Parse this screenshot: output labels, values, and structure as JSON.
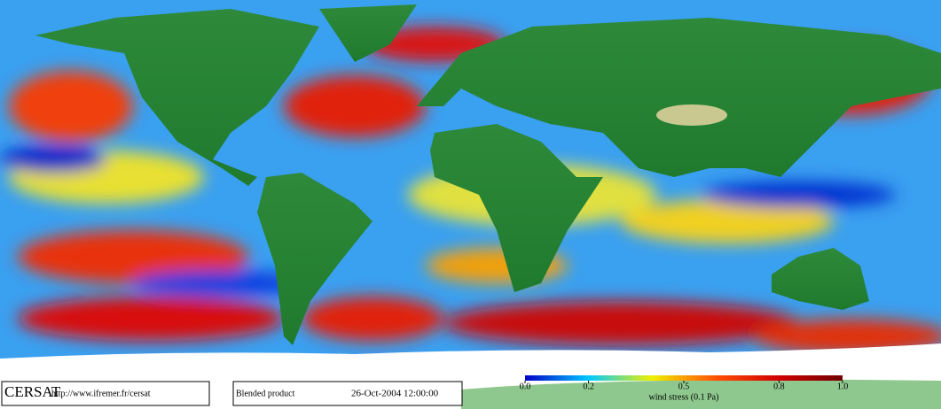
{
  "logo": "CERSAT",
  "url": "http://www.ifremer.fr/cersat",
  "product": "Blended product",
  "date": "26-Oct-2004 12:00:00",
  "colorbar": {
    "label": "wind stress (0.1 Pa)",
    "lim": [
      0,
      1
    ],
    "ticks": [
      {
        "value": 0,
        "label": "0.0"
      },
      0.2,
      0.5,
      0.8,
      {
        "value": 1,
        "label": "1.0"
      }
    ]
  }
}
